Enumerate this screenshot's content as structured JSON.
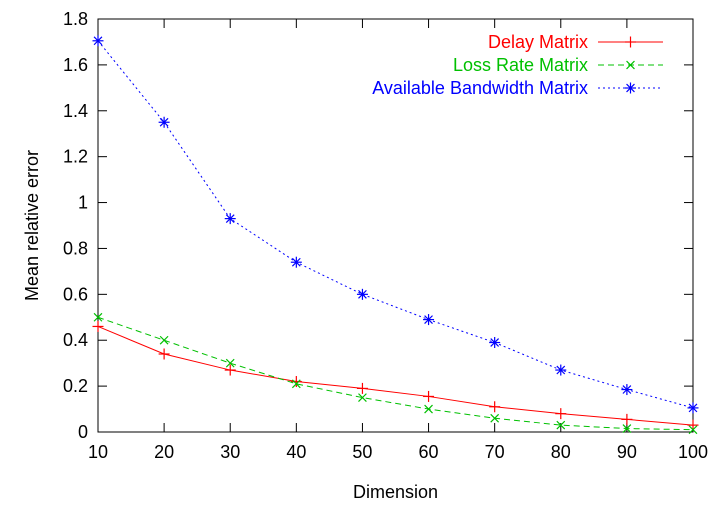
{
  "chart_data": {
    "type": "line",
    "title": "",
    "xlabel": "Dimension",
    "ylabel": "Mean relative error",
    "xlim": [
      10,
      100
    ],
    "ylim": [
      0,
      1.8
    ],
    "x_ticks": [
      10,
      20,
      30,
      40,
      50,
      60,
      70,
      80,
      90,
      100
    ],
    "y_ticks": [
      0,
      0.2,
      0.4,
      0.6,
      0.8,
      1,
      1.2,
      1.4,
      1.6,
      1.8
    ],
    "x_tick_labels": [
      "10",
      "20",
      "30",
      "40",
      "50",
      "60",
      "70",
      "80",
      "90",
      "100"
    ],
    "y_tick_labels": [
      "0",
      "0.2",
      "0.4",
      "0.6",
      "0.8",
      "1",
      "1.2",
      "1.4",
      "1.6",
      "1.8"
    ],
    "grid": false,
    "legend_position": "top-right",
    "x": [
      10,
      20,
      30,
      40,
      50,
      60,
      70,
      80,
      90,
      100
    ],
    "series": [
      {
        "name": "Delay Matrix",
        "color": "#ff0000",
        "marker": "plus",
        "line_style": "solid",
        "values": [
          0.46,
          0.34,
          0.27,
          0.22,
          0.19,
          0.155,
          0.11,
          0.08,
          0.055,
          0.03
        ]
      },
      {
        "name": "Loss Rate Matrix",
        "color": "#00c000",
        "marker": "cross",
        "line_style": "dashed",
        "values": [
          0.5,
          0.4,
          0.3,
          0.21,
          0.15,
          0.1,
          0.06,
          0.03,
          0.015,
          0.01
        ]
      },
      {
        "name": "Available Bandwidth Matrix",
        "color": "#0000ff",
        "marker": "star",
        "line_style": "dotted",
        "values": [
          1.705,
          1.35,
          0.93,
          0.74,
          0.6,
          0.49,
          0.39,
          0.27,
          0.185,
          0.105
        ]
      }
    ]
  }
}
